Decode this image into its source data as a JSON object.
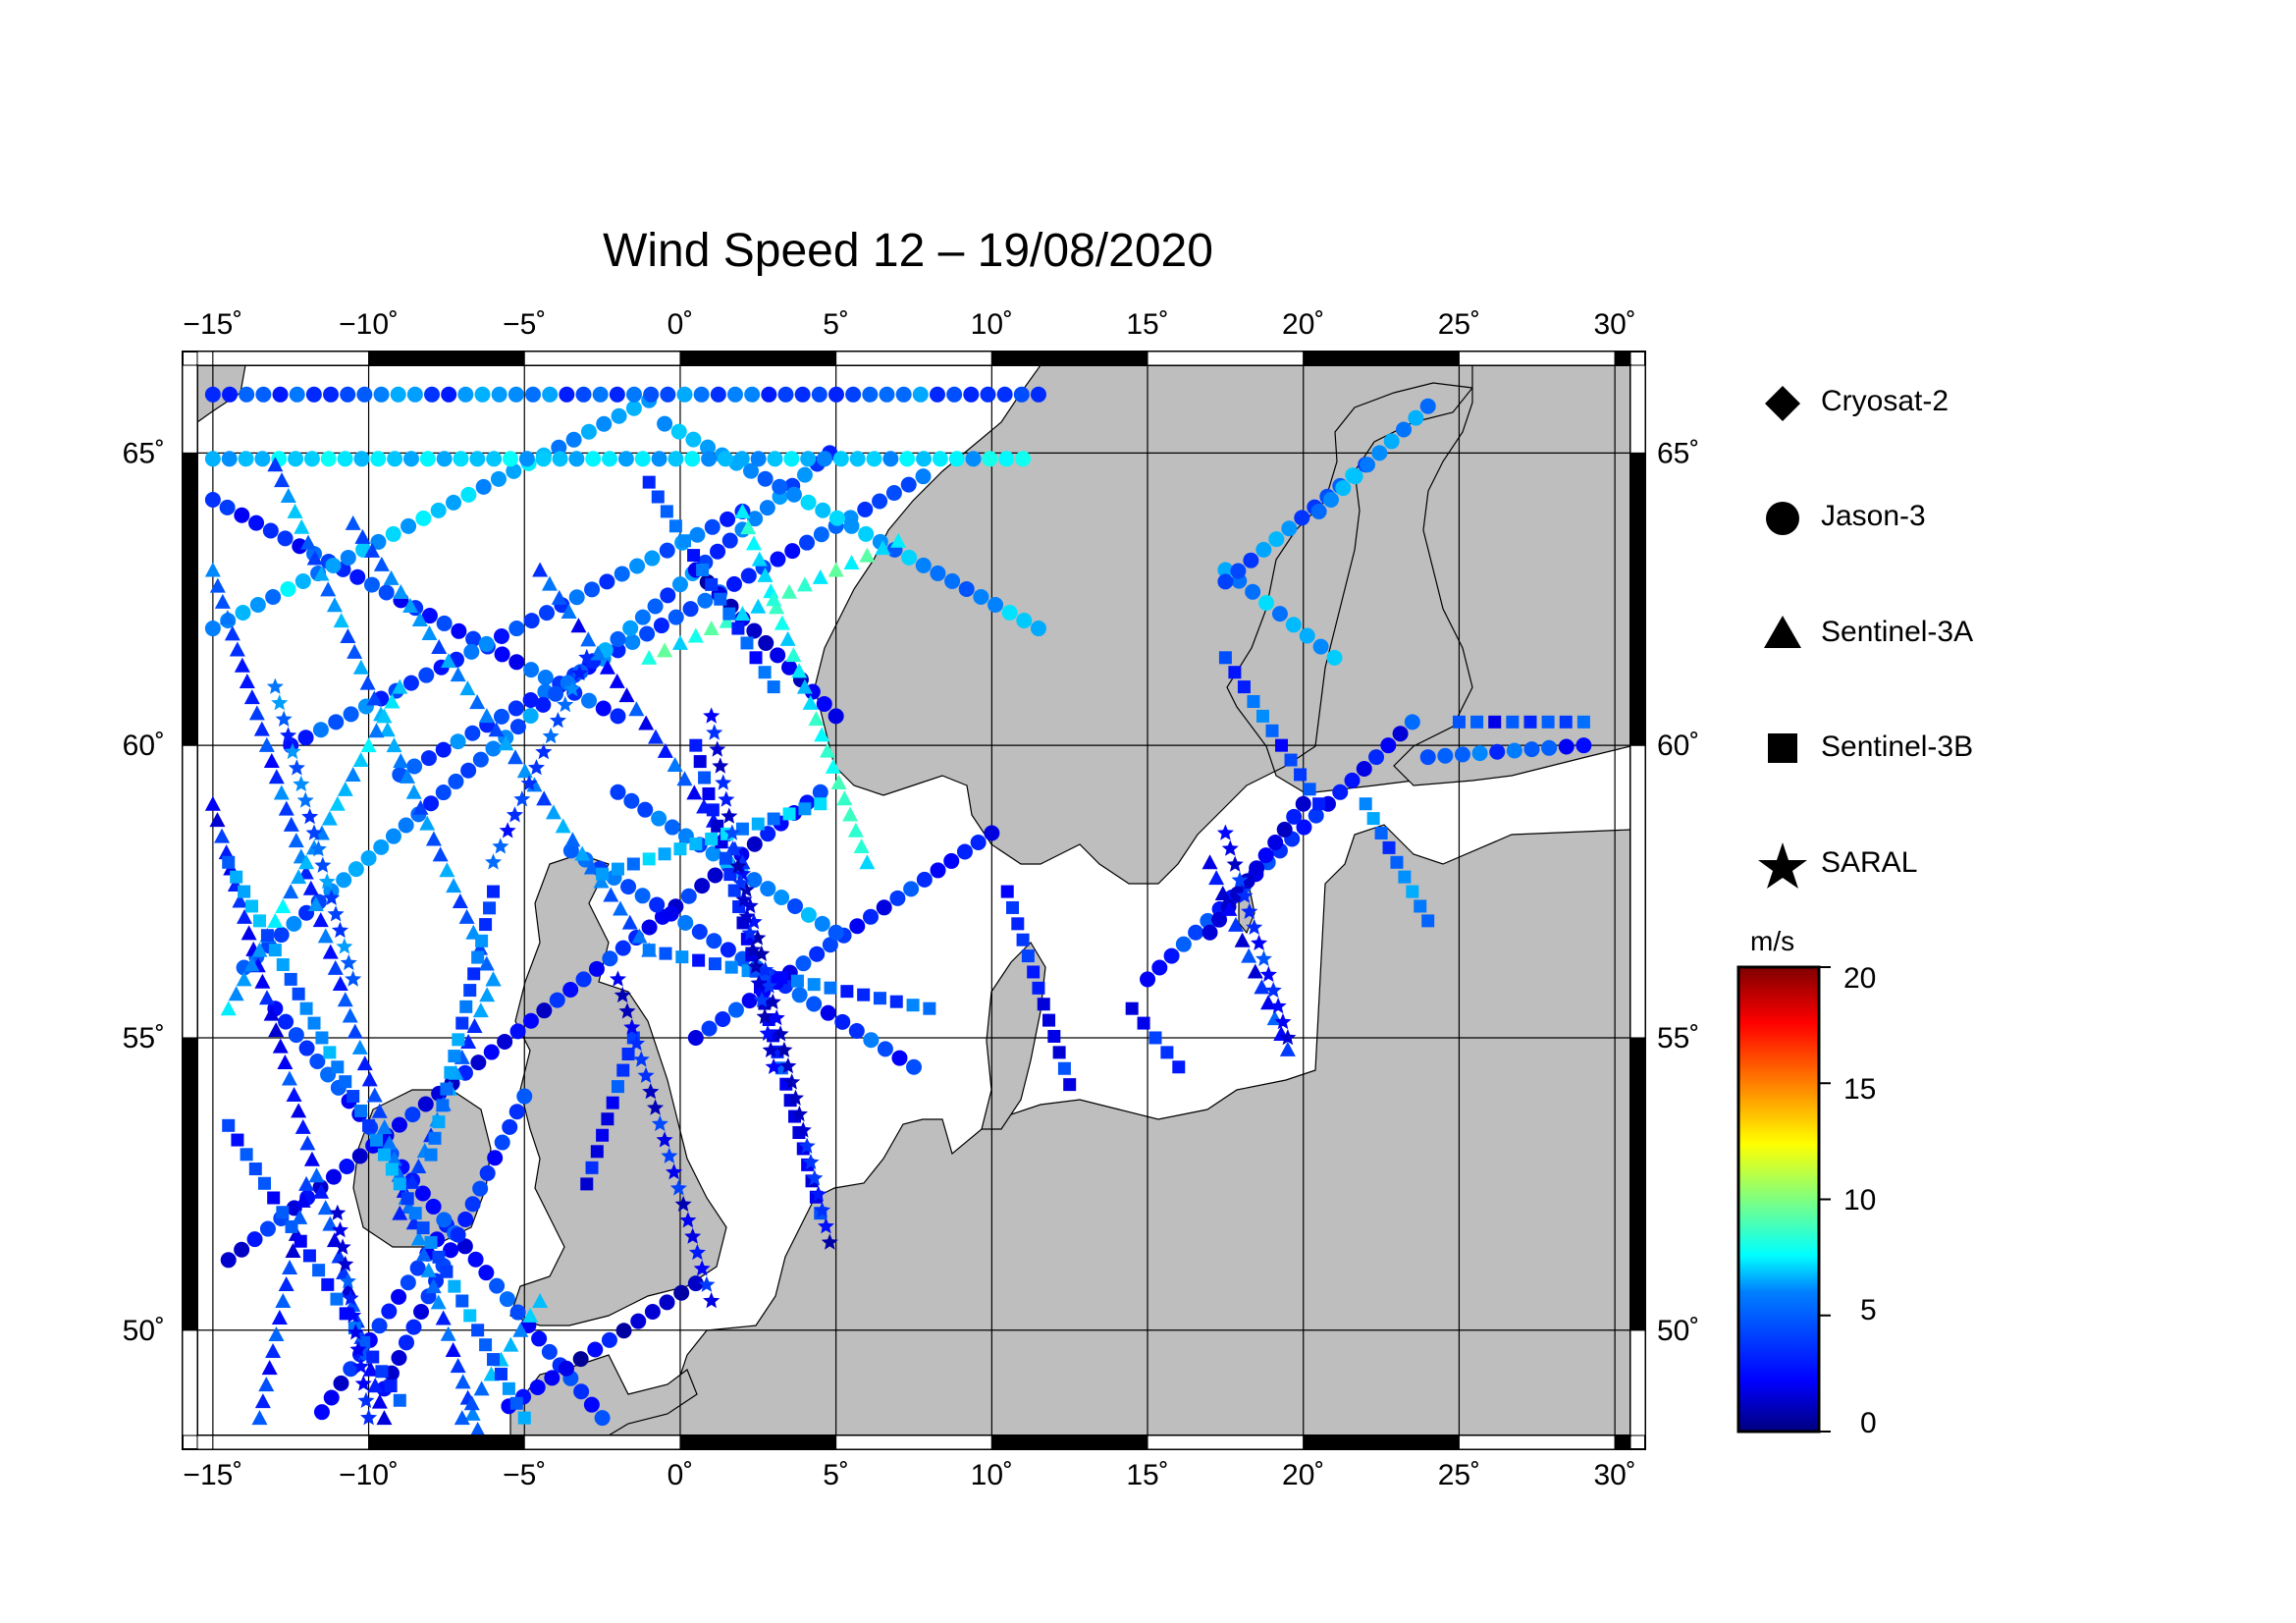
{
  "title": "Wind Speed 12 – 19/08/2020",
  "map": {
    "lon_range": [
      -15.5,
      30.5
    ],
    "lat_range": [
      48.2,
      66.5
    ],
    "lon_ticks": [
      {
        "value": -15,
        "label": "−15˚"
      },
      {
        "value": -10,
        "label": "−10˚"
      },
      {
        "value": -5,
        "label": "−5˚"
      },
      {
        "value": 0,
        "label": "0˚"
      },
      {
        "value": 5,
        "label": "5˚"
      },
      {
        "value": 10,
        "label": "10˚"
      },
      {
        "value": 15,
        "label": "15˚"
      },
      {
        "value": 20,
        "label": "20˚"
      },
      {
        "value": 25,
        "label": "25˚"
      },
      {
        "value": 30,
        "label": "30˚"
      }
    ],
    "lat_ticks": [
      {
        "value": 50,
        "label": "50˚"
      },
      {
        "value": 55,
        "label": "55˚"
      },
      {
        "value": 60,
        "label": "60˚"
      },
      {
        "value": 65,
        "label": "65˚"
      }
    ],
    "land_color": "#bebebe",
    "sea_color": "#ffffff"
  },
  "legend": {
    "items": [
      {
        "label": "Cryosat-2",
        "symbol": "diamond"
      },
      {
        "label": "Jason-3",
        "symbol": "circle"
      },
      {
        "label": "Sentinel-3A",
        "symbol": "triangle"
      },
      {
        "label": "Sentinel-3B",
        "symbol": "square"
      },
      {
        "label": "SARAL",
        "symbol": "star"
      }
    ]
  },
  "colorbar": {
    "unit": "m/s",
    "min": 0,
    "max": 20,
    "ticks": [
      {
        "value": 20,
        "label": "20"
      },
      {
        "value": 15,
        "label": "15"
      },
      {
        "value": 10,
        "label": "10"
      },
      {
        "value": 5,
        "label": "5"
      },
      {
        "value": 0,
        "label": "0"
      }
    ],
    "colormap": [
      "#00007f",
      "#0000ff",
      "#007fff",
      "#00ffff",
      "#7fff7f",
      "#ffff00",
      "#ff7f00",
      "#ff0000",
      "#7f0000"
    ]
  },
  "chart_data": {
    "type": "scatter",
    "title": "Wind Speed 12 – 19/08/2020",
    "xlabel": "",
    "ylabel": "",
    "value_unit": "m/s",
    "series": [
      {
        "name": "Jason-3",
        "symbol": "circle",
        "tracks": [
          {
            "from": [
              -15,
              64.2
            ],
            "to": [
              -2,
              60.5
            ],
            "ws": 3.5
          },
          {
            "from": [
              -9,
              59.5
            ],
            "to": [
              7.8,
              64.6
            ],
            "ws": 4.0
          },
          {
            "from": [
              -14,
              56.2
            ],
            "to": [
              4.8,
              65.0
            ],
            "ws": 4.5
          },
          {
            "from": [
              -14.5,
              51.2
            ],
            "to": [
              4.5,
              59.2
            ],
            "ws": 2.8
          },
          {
            "from": [
              -11.5,
              48.6
            ],
            "to": [
              -7.5,
              51.8
            ],
            "ws": 2.5
          },
          {
            "from": [
              -3.5,
              58.2
            ],
            "to": [
              7.5,
              54.5
            ],
            "ws": 3.5
          },
          {
            "from": [
              -15,
              62.0
            ],
            "to": [
              -1,
              65.9
            ],
            "ws": 6.0
          },
          {
            "from": [
              -12.5,
              60.0
            ],
            "to": [
              2,
              64.0
            ],
            "ws": 4.2
          },
          {
            "from": [
              0.5,
              55.0
            ],
            "to": [
              10,
              58.5
            ],
            "ws": 3.0
          },
          {
            "from": [
              -0.5,
              65.5
            ],
            "to": [
              11.5,
              62.0
            ],
            "ws": 5.5
          },
          {
            "from": [
              0.5,
              63.0
            ],
            "to": [
              5,
              60.5
            ],
            "ws": 2.0
          },
          {
            "from": [
              -15,
              66.0
            ],
            "to": [
              11.5,
              66.0
            ],
            "ws": 4.5
          },
          {
            "from": [
              -15,
              64.9
            ],
            "to": [
              11,
              64.9
            ],
            "ws": 6.5
          },
          {
            "from": [
              15,
              56.0
            ],
            "to": [
              23.5,
              60.4
            ],
            "ws": 3.2
          },
          {
            "from": [
              17.5,
              63.0
            ],
            "to": [
              21,
              61.5
            ],
            "ws": 5.5
          },
          {
            "from": [
              17.5,
              62.8
            ],
            "to": [
              22,
              64.8
            ],
            "ws": 5.0
          },
          {
            "from": [
              20.5,
              64.0
            ],
            "to": [
              24,
              65.8
            ],
            "ws": 6.0
          },
          {
            "from": [
              24,
              59.8
            ],
            "to": [
              29,
              60.0
            ],
            "ws": 3.8
          },
          {
            "from": [
              -13,
              55.5
            ],
            "to": [
              -2.5,
              48.5
            ],
            "ws": 3.2
          },
          {
            "from": [
              -5.5,
              48.7
            ],
            "to": [
              0.5,
              50.8
            ],
            "ws": 1.8
          },
          {
            "from": [
              17,
              56.8
            ],
            "to": [
              20,
              59.0
            ],
            "ws": 2.5
          },
          {
            "from": [
              -2,
              59.2
            ],
            "to": [
              5,
              56.8
            ],
            "ws": 5.0
          },
          {
            "from": [
              -9.5,
              49.0
            ],
            "to": [
              -5,
              54.0
            ],
            "ws": 2.8
          }
        ]
      },
      {
        "name": "Sentinel-3A",
        "symbol": "triangle",
        "tracks": [
          {
            "from": [
              -13,
              64.8
            ],
            "to": [
              -6,
              56.0
            ],
            "ws": 5.0
          },
          {
            "from": [
              -15,
              63.0
            ],
            "to": [
              -6.5,
              48.3
            ],
            "ws": 4.0
          },
          {
            "from": [
              -10.5,
              63.8
            ],
            "to": [
              -1,
              56.5
            ],
            "ws": 4.8
          },
          {
            "from": [
              -4.5,
              63.0
            ],
            "to": [
              2,
              58.0
            ],
            "ws": 3.5
          },
          {
            "from": [
              -15,
              59.0
            ],
            "to": [
              -9.5,
              48.5
            ],
            "ws": 3.0
          },
          {
            "from": [
              -14.5,
              55.5
            ],
            "to": [
              -9,
              61.0
            ],
            "ws": 6.0
          },
          {
            "from": [
              -9,
              52.0
            ],
            "to": [
              -6,
              56.0
            ],
            "ws": 4.5
          },
          {
            "from": [
              2,
              64.0
            ],
            "to": [
              6,
              58.0
            ],
            "ws": 7.5
          },
          {
            "from": [
              -1,
              61.5
            ],
            "to": [
              7,
              63.5
            ],
            "ws": 8.0
          },
          {
            "from": [
              17,
              58.0
            ],
            "to": [
              19.5,
              54.8
            ],
            "ws": 3.0
          },
          {
            "from": [
              -13.5,
              48.5
            ],
            "to": [
              -12,
              52.5
            ],
            "ws": 3.0
          },
          {
            "from": [
              -7,
              48.5
            ],
            "to": [
              -4.5,
              50.5
            ],
            "ws": 5.5
          }
        ]
      },
      {
        "name": "Sentinel-3B",
        "symbol": "square",
        "tracks": [
          {
            "from": [
              -14.5,
              58.0
            ],
            "to": [
              -5,
              48.5
            ],
            "ws": 5.0
          },
          {
            "from": [
              -1,
              56.5
            ],
            "to": [
              8,
              55.5
            ],
            "ws": 4.0
          },
          {
            "from": [
              -14.5,
              53.5
            ],
            "to": [
              -9,
              48.8
            ],
            "ws": 3.5
          },
          {
            "from": [
              0.5,
              60.0
            ],
            "to": [
              4.5,
              52.0
            ],
            "ws": 3.0
          },
          {
            "from": [
              -2.5,
              57.8
            ],
            "to": [
              4.5,
              59.0
            ],
            "ws": 5.5
          },
          {
            "from": [
              10.5,
              57.5
            ],
            "to": [
              12.5,
              54.2
            ],
            "ws": 3.0
          },
          {
            "from": [
              14.5,
              55.5
            ],
            "to": [
              16,
              54.5
            ],
            "ws": 3.0
          },
          {
            "from": [
              17.5,
              61.5
            ],
            "to": [
              20.5,
              59.0
            ],
            "ws": 4.0
          },
          {
            "from": [
              22,
              59.0
            ],
            "to": [
              24,
              57.0
            ],
            "ws": 4.5
          },
          {
            "from": [
              25,
              60.4
            ],
            "to": [
              29,
              60.4
            ],
            "ws": 3.5
          },
          {
            "from": [
              -1,
              64.5
            ],
            "to": [
              3,
              61.0
            ],
            "ws": 4.0
          },
          {
            "from": [
              -3,
              52.5
            ],
            "to": [
              -1.5,
              55.0
            ],
            "ws": 3.0
          },
          {
            "from": [
              -8,
              53.0
            ],
            "to": [
              -6,
              57.5
            ],
            "ws": 4.5
          }
        ]
      },
      {
        "name": "SARAL",
        "symbol": "star",
        "tracks": [
          {
            "from": [
              -13,
              61.0
            ],
            "to": [
              -10.5,
              56.0
            ],
            "ws": 4.5
          },
          {
            "from": [
              -11,
              52.0
            ],
            "to": [
              -10,
              48.5
            ],
            "ws": 3.0
          },
          {
            "from": [
              2,
              57.8
            ],
            "to": [
              4.8,
              51.5
            ],
            "ws": 2.2
          },
          {
            "from": [
              1,
              60.5
            ],
            "to": [
              3,
              54.5
            ],
            "ws": 2.5
          },
          {
            "from": [
              -3,
              61.5
            ],
            "to": [
              -6,
              58.0
            ],
            "ws": 4.0
          },
          {
            "from": [
              17.5,
              58.5
            ],
            "to": [
              19.5,
              55.0
            ],
            "ws": 2.8
          },
          {
            "from": [
              -2,
              56.0
            ],
            "to": [
              1,
              50.5
            ],
            "ws": 2.5
          }
        ]
      },
      {
        "name": "Cryosat-2",
        "symbol": "diamond",
        "tracks": []
      }
    ]
  }
}
